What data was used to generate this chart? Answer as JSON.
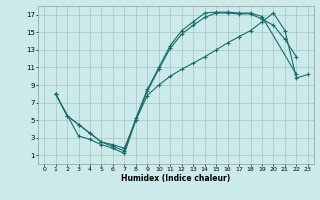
{
  "title": "",
  "xlabel": "Humidex (Indice chaleur)",
  "bg_color": "#cceaea",
  "grid_color": "#aacccc",
  "line_color": "#1a6b6b",
  "xlim": [
    -0.5,
    23.5
  ],
  "ylim": [
    0,
    18
  ],
  "xticks": [
    0,
    1,
    2,
    3,
    4,
    5,
    6,
    7,
    8,
    9,
    10,
    11,
    12,
    13,
    14,
    15,
    16,
    17,
    18,
    19,
    20,
    21,
    22,
    23
  ],
  "yticks": [
    1,
    3,
    5,
    7,
    9,
    11,
    13,
    15,
    17
  ],
  "line1_x": [
    1,
    2,
    3,
    4,
    5,
    6,
    7,
    8,
    9,
    10,
    11,
    12,
    13,
    14,
    15,
    16,
    17,
    18,
    19,
    22
  ],
  "line1_y": [
    8,
    5.5,
    4.5,
    3.5,
    2.5,
    2.0,
    1.5,
    5.2,
    8.5,
    11.0,
    13.5,
    15.2,
    16.2,
    17.2,
    17.3,
    17.3,
    17.2,
    17.2,
    16.8,
    10.2
  ],
  "line2_x": [
    1,
    3,
    4,
    5,
    6,
    7,
    8,
    9,
    10,
    11,
    12,
    13,
    14,
    15,
    16,
    17,
    18,
    19,
    20,
    21,
    22
  ],
  "line2_y": [
    8,
    3.2,
    2.8,
    2.2,
    1.8,
    1.2,
    5.0,
    8.3,
    10.8,
    13.2,
    14.8,
    15.8,
    16.7,
    17.2,
    17.2,
    17.1,
    17.1,
    16.5,
    15.8,
    14.2,
    12.2
  ],
  "line3_x": [
    1,
    2,
    3,
    4,
    5,
    6,
    7,
    8,
    9,
    10,
    11,
    12,
    13,
    14,
    15,
    16,
    17,
    18,
    19,
    20,
    21,
    22,
    23
  ],
  "line3_y": [
    8,
    5.5,
    4.5,
    3.5,
    2.5,
    2.2,
    1.8,
    5.0,
    7.8,
    9.0,
    10.0,
    10.8,
    11.5,
    12.2,
    13.0,
    13.8,
    14.5,
    15.2,
    16.2,
    17.2,
    15.2,
    9.8,
    10.2
  ]
}
